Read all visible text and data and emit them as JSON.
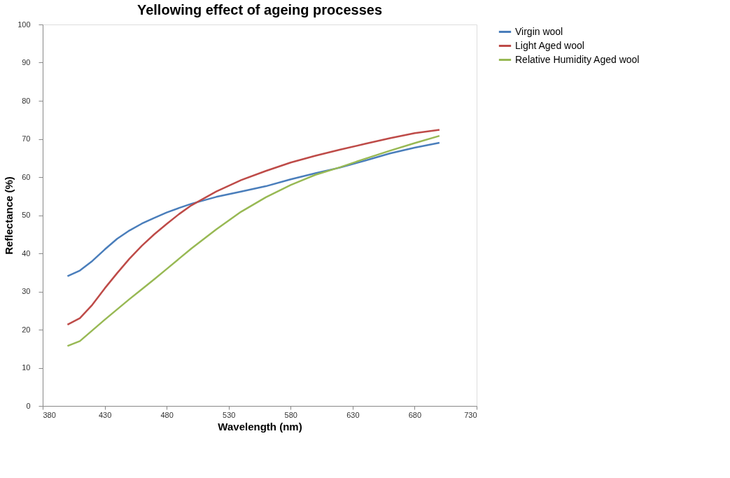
{
  "chart_data": {
    "type": "line",
    "title": "Yellowing effect of ageing processes",
    "xlabel": "Wavelength (nm)",
    "ylabel": "Reflectance (%)",
    "x": [
      400,
      410,
      420,
      430,
      440,
      450,
      460,
      470,
      480,
      490,
      500,
      520,
      540,
      560,
      580,
      600,
      620,
      640,
      660,
      680,
      700
    ],
    "series": [
      {
        "name": "Virgin wool",
        "color": "#4a7ebb",
        "values": [
          34,
          35.5,
          38,
          41,
          43.8,
          46,
          47.8,
          49.3,
          50.7,
          51.9,
          53,
          54.8,
          56.2,
          57.6,
          59.4,
          61,
          62.5,
          64.3,
          66.2,
          67.7,
          69
        ]
      },
      {
        "name": "Light Aged wool",
        "color": "#be4b48",
        "values": [
          21.3,
          23,
          26.5,
          30.8,
          34.8,
          38.6,
          42,
          45,
          47.7,
          50.3,
          52.6,
          56.2,
          59.2,
          61.6,
          63.8,
          65.6,
          67.2,
          68.7,
          70.2,
          71.5,
          72.4
        ]
      },
      {
        "name": "Relative Humidity Aged wool",
        "color": "#98b954",
        "values": [
          15.7,
          17,
          19.8,
          22.6,
          25.3,
          28,
          30.6,
          33.2,
          35.9,
          38.6,
          41.3,
          46.3,
          50.9,
          54.7,
          57.9,
          60.6,
          62.6,
          64.8,
          66.9,
          68.9,
          70.8
        ]
      }
    ],
    "xlim": [
      380,
      730
    ],
    "xticks": [
      380,
      430,
      480,
      530,
      580,
      630,
      680,
      730
    ],
    "ylim": [
      0,
      100
    ],
    "yticks": [
      0,
      10,
      20,
      30,
      40,
      50,
      60,
      70,
      80,
      90,
      100
    ],
    "grid": false,
    "legend": "right",
    "marker": "none",
    "line_style": "solid"
  }
}
